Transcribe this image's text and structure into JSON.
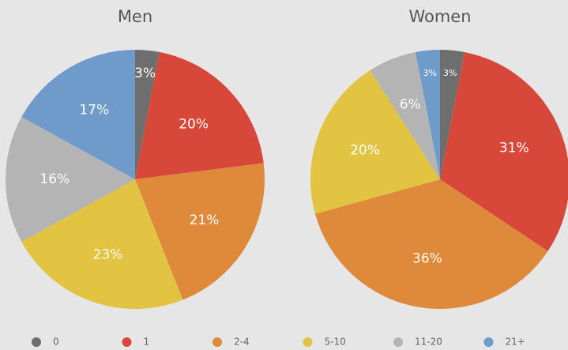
{
  "chart_data": [
    {
      "type": "pie",
      "title": "Men",
      "categories": [
        "0",
        "1",
        "2-4",
        "5-10",
        "11-20",
        "21+"
      ],
      "colors": [
        "#6e6e6e",
        "#d7483a",
        "#df8a3b",
        "#e2c342",
        "#b4b4b4",
        "#6e9bca"
      ],
      "values": [
        3,
        20,
        21,
        23,
        16,
        17
      ],
      "value_labels": [
        "3%",
        "20%",
        "21%",
        "23%",
        "16%",
        "17%"
      ]
    },
    {
      "type": "pie",
      "title": "Women",
      "categories": [
        "0",
        "1",
        "2-4",
        "5-10",
        "11-20",
        "21+"
      ],
      "colors": [
        "#6e6e6e",
        "#d7483a",
        "#df8a3b",
        "#e2c342",
        "#b4b4b4",
        "#6e9bca"
      ],
      "values": [
        3,
        31,
        36,
        20,
        6,
        3
      ],
      "value_labels": [
        "3%",
        "31%",
        "36%",
        "20%",
        "6%",
        "3%"
      ]
    }
  ]
}
